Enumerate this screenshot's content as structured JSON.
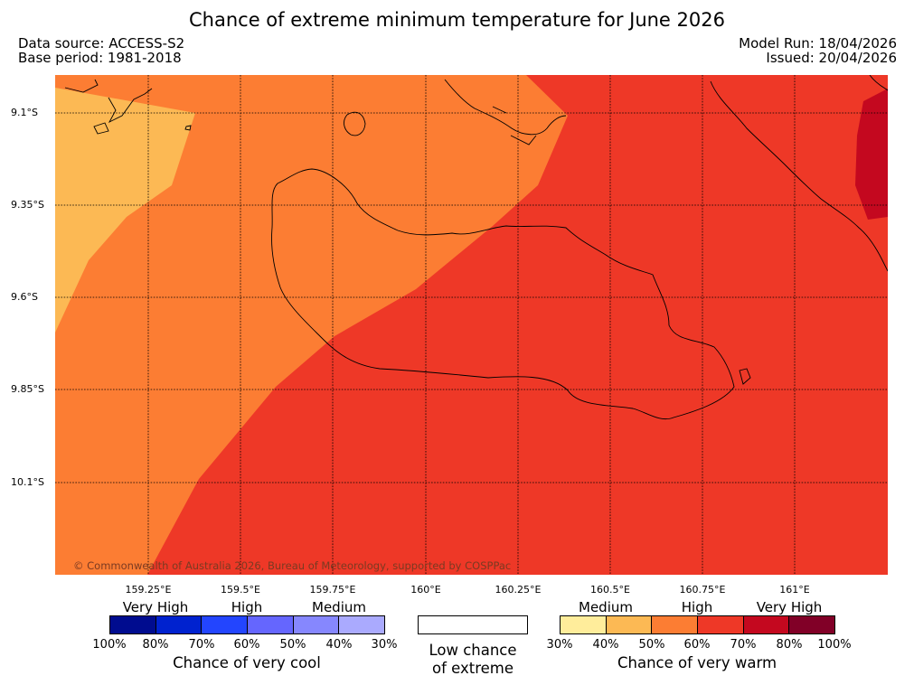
{
  "title": "Chance of extreme minimum temperature for June 2026",
  "meta": {
    "data_source": "Data source: ACCESS-S2",
    "base_period": "Base period: 1981-2018",
    "model_run": "Model Run: 18/04/2026",
    "issued": "Issued: 20/04/2026"
  },
  "map": {
    "lat_labels": [
      "9.1°S",
      "9.35°S",
      "9.6°S",
      "9.85°S",
      "10.1°S"
    ],
    "lon_labels": [
      "159.25°E",
      "159.5°E",
      "159.75°E",
      "160°E",
      "160.25°E",
      "160.5°E",
      "160.75°E",
      "161°E"
    ],
    "copyright": "© Commonwealth of Australia 2026, Bureau of Meteorology, supported by COSPPac",
    "fill_colors": {
      "light": "#fcb954",
      "orange": "#fc7d33",
      "red": "#ee3827",
      "dark": "#c4081f"
    }
  },
  "legend": {
    "cool": {
      "categories": [
        "Very High",
        "High",
        "Medium"
      ],
      "colors": [
        "#000c8f",
        "#0022cf",
        "#2345fe",
        "#6566fe",
        "#8687fe",
        "#aaaafe"
      ],
      "ticks": [
        "100%",
        "80%",
        "70%",
        "60%",
        "50%",
        "40%",
        "30%"
      ],
      "title": "Chance of very cool"
    },
    "null": {
      "line1": "Low chance",
      "line2": "of extreme"
    },
    "warm": {
      "categories": [
        "Medium",
        "High",
        "Very High"
      ],
      "colors": [
        "#ffed9b",
        "#fcb954",
        "#fc7d33",
        "#ee3827",
        "#c4081f",
        "#810027"
      ],
      "ticks": [
        "30%",
        "40%",
        "50%",
        "60%",
        "70%",
        "80%",
        "100%"
      ],
      "title": "Chance of very warm"
    }
  }
}
